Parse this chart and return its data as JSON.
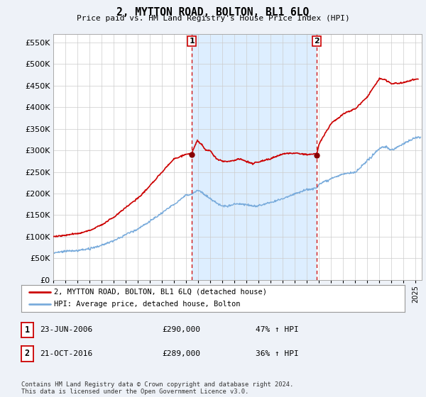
{
  "title": "2, MYTTON ROAD, BOLTON, BL1 6LQ",
  "subtitle": "Price paid vs. HM Land Registry's House Price Index (HPI)",
  "ylim": [
    0,
    570000
  ],
  "yticks": [
    0,
    50000,
    100000,
    150000,
    200000,
    250000,
    300000,
    350000,
    400000,
    450000,
    500000,
    550000
  ],
  "xmin": 1995.0,
  "xmax": 2025.5,
  "xtick_years": [
    1995,
    1996,
    1997,
    1998,
    1999,
    2000,
    2001,
    2002,
    2003,
    2004,
    2005,
    2006,
    2007,
    2008,
    2009,
    2010,
    2011,
    2012,
    2013,
    2014,
    2015,
    2016,
    2017,
    2018,
    2019,
    2020,
    2021,
    2022,
    2023,
    2024,
    2025
  ],
  "sale1_x": 2006.477,
  "sale1_y": 290000,
  "sale2_x": 2016.808,
  "sale2_y": 289000,
  "sale1_label": "1",
  "sale2_label": "2",
  "red_color": "#cc0000",
  "blue_color": "#7aacdc",
  "shade_color": "#ddeeff",
  "vline_color": "#cc0000",
  "legend_entry1": "2, MYTTON ROAD, BOLTON, BL1 6LQ (detached house)",
  "legend_entry2": "HPI: Average price, detached house, Bolton",
  "table_row1": [
    "1",
    "23-JUN-2006",
    "£290,000",
    "47% ↑ HPI"
  ],
  "table_row2": [
    "2",
    "21-OCT-2016",
    "£289,000",
    "36% ↑ HPI"
  ],
  "footnote": "Contains HM Land Registry data © Crown copyright and database right 2024.\nThis data is licensed under the Open Government Licence v3.0.",
  "background_color": "#eef2f8",
  "plot_bg_color": "#ffffff",
  "grid_color": "#cccccc"
}
